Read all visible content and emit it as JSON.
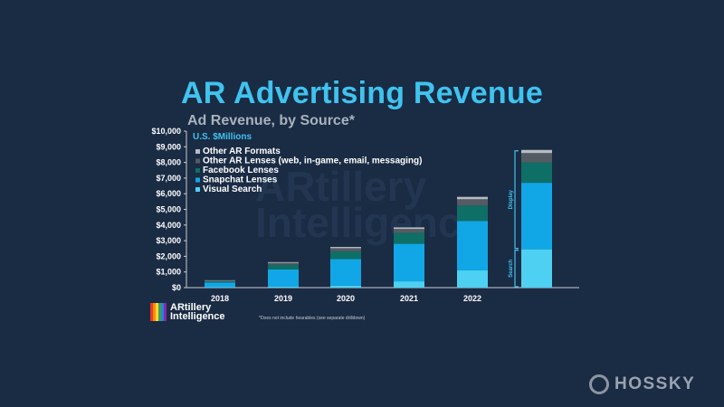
{
  "header": {
    "title": "AR Advertising Revenue",
    "subtitle": "Ad Revenue, by Source*",
    "units": "U.S. $Millions"
  },
  "watermark": {
    "line1": "ARtillery",
    "line2": "Intelligence"
  },
  "logo": {
    "line1": "ARtillery",
    "line2": "Intelligence",
    "stripe_colors": [
      "#e53935",
      "#fb8c00",
      "#fdd835",
      "#43a047",
      "#1e88e5",
      "#8e24aa"
    ]
  },
  "footnote": "*Does not include hearables (see separate drilldown)",
  "brand": {
    "name": "HOSSKY"
  },
  "chart_data": {
    "type": "bar",
    "stacked": true,
    "categories": [
      "2018",
      "2019",
      "2020",
      "2021",
      "2022",
      ""
    ],
    "ylim": [
      0,
      10000
    ],
    "yticks": [
      0,
      1000,
      2000,
      3000,
      4000,
      5000,
      6000,
      7000,
      8000,
      9000,
      10000
    ],
    "ytick_labels": [
      "$0",
      "$1,000",
      "$2,000",
      "$3,000",
      "$4,000",
      "$5,000",
      "$6,000",
      "$7,000",
      "$8,000",
      "$9,000",
      "$10,000"
    ],
    "grid": false,
    "legend": "top-left",
    "series": [
      {
        "name": "Visual Search",
        "color": "#4dd0f2",
        "values": [
          30,
          60,
          120,
          400,
          1100,
          2450
        ]
      },
      {
        "name": "Snapchat Lenses",
        "color": "#11a7e6",
        "values": [
          300,
          1100,
          1700,
          2400,
          3150,
          4250
        ]
      },
      {
        "name": "Facebook Lenses",
        "color": "#0e6f66",
        "values": [
          80,
          300,
          500,
          700,
          1000,
          1300
        ]
      },
      {
        "name": "Other AR Lenses (web, in-game, email, messaging)",
        "color": "#555b63",
        "values": [
          40,
          120,
          200,
          250,
          400,
          600
        ]
      },
      {
        "name": "Other AR Formats",
        "color": "#b7bcc2",
        "values": [
          20,
          50,
          80,
          100,
          150,
          200
        ]
      }
    ],
    "legend_order": [
      4,
      3,
      2,
      1,
      0
    ],
    "annotations": [
      {
        "label": "Display",
        "from": 2450,
        "to": 8800
      },
      {
        "label": "Search",
        "from": 0,
        "to": 2450
      }
    ]
  }
}
